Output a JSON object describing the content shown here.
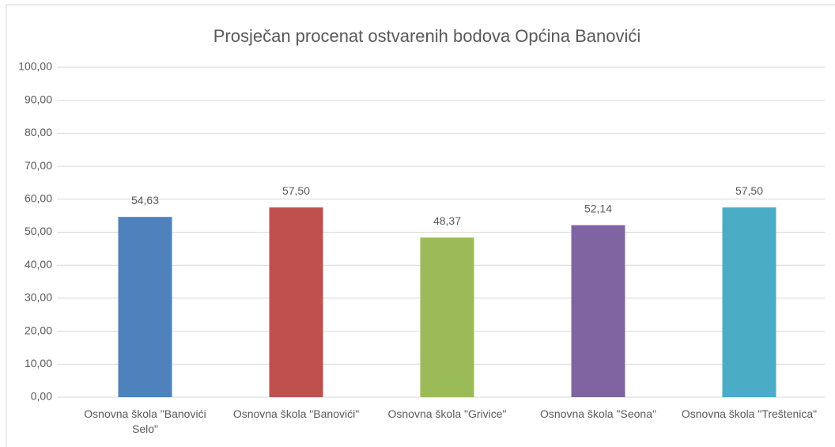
{
  "chart_data": {
    "type": "bar",
    "title": "Prosječan procenat ostvarenih bodova Općina Banovići",
    "categories": [
      "Osnovna škola \"Banovići Selo\"",
      "Osnovna škola \"Banovići\"",
      "Osnovna škola \"Grivice\"",
      "Osnovna škola \"Seona\"",
      "Osnovna škola \"Treštenica\""
    ],
    "values": [
      54.63,
      57.5,
      48.37,
      52.14,
      57.5
    ],
    "value_labels": [
      "54,63",
      "57,50",
      "48,37",
      "52,14",
      "57,50"
    ],
    "colors": [
      "#4f81bd",
      "#c0504d",
      "#9bbb59",
      "#8064a2",
      "#4bacc6"
    ],
    "ylim": [
      0,
      100
    ],
    "yticks": [
      {
        "value": 0,
        "label": "0,00"
      },
      {
        "value": 10,
        "label": "10,00"
      },
      {
        "value": 20,
        "label": "20,00"
      },
      {
        "value": 30,
        "label": "30,00"
      },
      {
        "value": 40,
        "label": "40,00"
      },
      {
        "value": 50,
        "label": "50,00"
      },
      {
        "value": 60,
        "label": "60,00"
      },
      {
        "value": 70,
        "label": "70,00"
      },
      {
        "value": 80,
        "label": "80,00"
      },
      {
        "value": 90,
        "label": "90,00"
      },
      {
        "value": 100,
        "label": "100,00"
      }
    ],
    "grid": true
  }
}
